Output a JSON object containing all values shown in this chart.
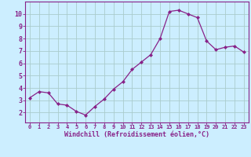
{
  "x": [
    0,
    1,
    2,
    3,
    4,
    5,
    6,
    7,
    8,
    9,
    10,
    11,
    12,
    13,
    14,
    15,
    16,
    17,
    18,
    19,
    20,
    21,
    22,
    23
  ],
  "y": [
    3.2,
    3.7,
    3.6,
    2.7,
    2.6,
    2.1,
    1.8,
    2.5,
    3.1,
    3.9,
    4.5,
    5.5,
    6.1,
    6.7,
    8.0,
    10.2,
    10.3,
    10.0,
    9.7,
    7.8,
    7.1,
    7.3,
    7.4,
    6.9
  ],
  "line_color": "#882288",
  "marker": "D",
  "marker_size": 2.0,
  "bg_color": "#cceeff",
  "grid_color": "#aacccc",
  "xlabel": "Windchill (Refroidissement éolien,°C)",
  "xlim": [
    -0.5,
    23.5
  ],
  "ylim": [
    1.2,
    11.0
  ],
  "yticks": [
    2,
    3,
    4,
    5,
    6,
    7,
    8,
    9,
    10
  ],
  "xtick_labels": [
    "0",
    "1",
    "2",
    "3",
    "4",
    "5",
    "6",
    "7",
    "8",
    "9",
    "10",
    "11",
    "12",
    "13",
    "14",
    "15",
    "16",
    "17",
    "18",
    "19",
    "20",
    "21",
    "22",
    "23"
  ],
  "axes_label_color": "#882288",
  "tick_color": "#882288",
  "font_family": "monospace",
  "xtick_fontsize": 5.0,
  "ytick_fontsize": 6.0,
  "xlabel_fontsize": 6.0
}
